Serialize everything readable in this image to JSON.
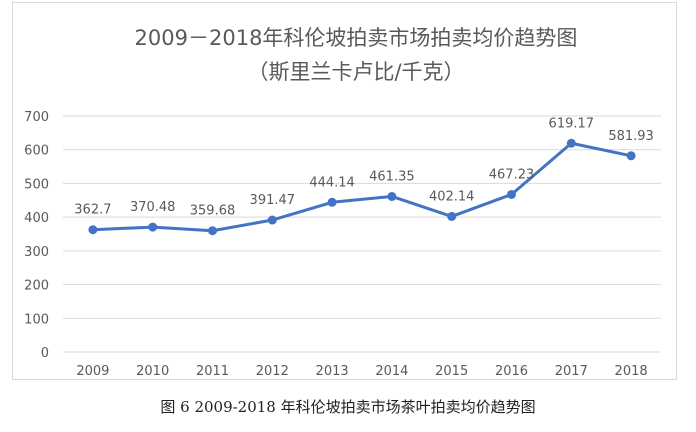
{
  "chart_data": {
    "type": "line",
    "title": "2009－2018年科伦坡拍卖市场拍卖均价趋势图",
    "subtitle": "（斯里兰卡卢比/千克）",
    "xlabel": "",
    "ylabel": "",
    "ylim": [
      0,
      700
    ],
    "yticks": [
      0,
      100,
      200,
      300,
      400,
      500,
      600,
      700
    ],
    "grid": true,
    "legend": "none",
    "categories": [
      "2009",
      "2010",
      "2011",
      "2012",
      "2013",
      "2014",
      "2015",
      "2016",
      "2017",
      "2018"
    ],
    "series": [
      {
        "name": "拍卖均价",
        "color": "#4472c4",
        "values": [
          362.7,
          370.48,
          359.68,
          391.47,
          444.14,
          461.35,
          402.14,
          467.23,
          619.17,
          581.93
        ],
        "labels": [
          "362.7",
          "370.48",
          "359.68",
          "391.47",
          "444.14",
          "461.35",
          "402.14",
          "467.23",
          "619.17",
          "581.93"
        ]
      }
    ]
  },
  "caption": "图 6  2009-2018 年科伦坡拍卖市场茶叶拍卖均价趋势图",
  "colors": {
    "line": "#4472c4",
    "grid": "#d9d9d9",
    "text": "#595959",
    "title": "#595959"
  }
}
